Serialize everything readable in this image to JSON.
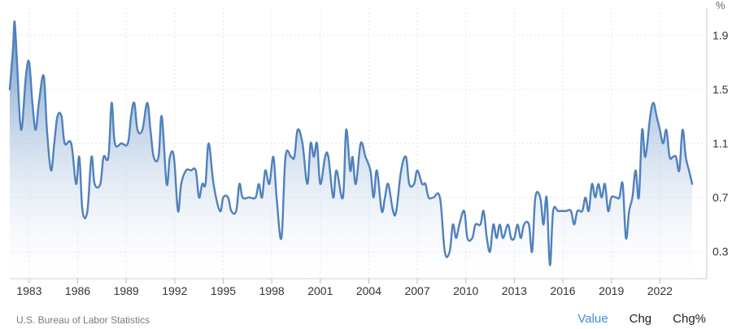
{
  "chart_data": {
    "type": "area",
    "title": "",
    "unit_label": "%",
    "xlabel": "",
    "ylabel": "",
    "xlim": [
      1981.8,
      2024.9
    ],
    "ylim": [
      0.1,
      2.1
    ],
    "grid": true,
    "line_color": "#4f81bd",
    "fill_color_top": "#4f81bd",
    "fill_color_bottom": "#ffffff",
    "x_ticks": [
      1983,
      1986,
      1989,
      1992,
      1995,
      1998,
      2001,
      2004,
      2007,
      2010,
      2013,
      2016,
      2019,
      2022
    ],
    "y_ticks": [
      0.3,
      0.7,
      1.1,
      1.5,
      1.9
    ],
    "x_tick_labels": [
      "1983",
      "1986",
      "1989",
      "1992",
      "1995",
      "1998",
      "2001",
      "2004",
      "2007",
      "2010",
      "2013",
      "2016",
      "2019",
      "2022"
    ],
    "y_tick_labels": [
      "0.3",
      "0.7",
      "1.1",
      "1.5",
      "1.9"
    ],
    "points": [
      [
        1981.8,
        1.5
      ],
      [
        1982.0,
        1.8
      ],
      [
        1982.1,
        2.0
      ],
      [
        1982.25,
        1.7
      ],
      [
        1982.5,
        1.2
      ],
      [
        1982.8,
        1.6
      ],
      [
        1983.0,
        1.7
      ],
      [
        1983.2,
        1.4
      ],
      [
        1983.4,
        1.2
      ],
      [
        1983.6,
        1.4
      ],
      [
        1983.9,
        1.6
      ],
      [
        1984.1,
        1.2
      ],
      [
        1984.35,
        0.9
      ],
      [
        1984.55,
        1.1
      ],
      [
        1984.75,
        1.3
      ],
      [
        1985.0,
        1.3
      ],
      [
        1985.2,
        1.1
      ],
      [
        1985.6,
        1.1
      ],
      [
        1985.9,
        0.8
      ],
      [
        1986.1,
        1.0
      ],
      [
        1986.3,
        0.6
      ],
      [
        1986.6,
        0.6
      ],
      [
        1986.85,
        1.0
      ],
      [
        1987.05,
        0.8
      ],
      [
        1987.4,
        0.8
      ],
      [
        1987.6,
        1.0
      ],
      [
        1987.9,
        1.0
      ],
      [
        1988.1,
        1.4
      ],
      [
        1988.3,
        1.1
      ],
      [
        1988.7,
        1.1
      ],
      [
        1989.1,
        1.1
      ],
      [
        1989.3,
        1.3
      ],
      [
        1989.5,
        1.4
      ],
      [
        1989.7,
        1.2
      ],
      [
        1990.0,
        1.2
      ],
      [
        1990.3,
        1.4
      ],
      [
        1990.5,
        1.2
      ],
      [
        1990.7,
        1.0
      ],
      [
        1991.0,
        1.0
      ],
      [
        1991.2,
        1.3
      ],
      [
        1991.5,
        0.8
      ],
      [
        1991.7,
        1.0
      ],
      [
        1991.95,
        1.0
      ],
      [
        1992.2,
        0.6
      ],
      [
        1992.4,
        0.8
      ],
      [
        1992.7,
        0.9
      ],
      [
        1993.0,
        0.9
      ],
      [
        1993.3,
        0.9
      ],
      [
        1993.5,
        0.7
      ],
      [
        1993.7,
        0.8
      ],
      [
        1993.9,
        0.8
      ],
      [
        1994.1,
        1.1
      ],
      [
        1994.4,
        0.8
      ],
      [
        1994.8,
        0.6
      ],
      [
        1995.0,
        0.7
      ],
      [
        1995.3,
        0.7
      ],
      [
        1995.5,
        0.6
      ],
      [
        1995.8,
        0.6
      ],
      [
        1996.0,
        0.8
      ],
      [
        1996.2,
        0.7
      ],
      [
        1996.6,
        0.7
      ],
      [
        1997.0,
        0.7
      ],
      [
        1997.2,
        0.8
      ],
      [
        1997.4,
        0.7
      ],
      [
        1997.6,
        0.9
      ],
      [
        1997.85,
        0.8
      ],
      [
        1998.1,
        1.0
      ],
      [
        1998.3,
        0.7
      ],
      [
        1998.6,
        0.4
      ],
      [
        1998.85,
        1.0
      ],
      [
        1999.2,
        1.0
      ],
      [
        1999.4,
        1.0
      ],
      [
        1999.6,
        1.2
      ],
      [
        1999.9,
        1.1
      ],
      [
        2000.2,
        0.8
      ],
      [
        2000.4,
        1.1
      ],
      [
        2000.6,
        1.0
      ],
      [
        2000.8,
        1.1
      ],
      [
        2001.0,
        0.8
      ],
      [
        2001.3,
        1.0
      ],
      [
        2001.5,
        1.0
      ],
      [
        2001.8,
        0.7
      ],
      [
        2002.0,
        0.9
      ],
      [
        2002.4,
        0.7
      ],
      [
        2002.6,
        1.2
      ],
      [
        2002.85,
        0.9
      ],
      [
        2003.0,
        1.0
      ],
      [
        2003.2,
        0.8
      ],
      [
        2003.5,
        1.1
      ],
      [
        2003.8,
        1.0
      ],
      [
        2004.1,
        0.9
      ],
      [
        2004.3,
        0.7
      ],
      [
        2004.5,
        0.9
      ],
      [
        2004.8,
        0.6
      ],
      [
        2005.0,
        0.7
      ],
      [
        2005.2,
        0.8
      ],
      [
        2005.5,
        0.6
      ],
      [
        2005.7,
        0.6
      ],
      [
        2006.0,
        0.9
      ],
      [
        2006.3,
        1.0
      ],
      [
        2006.5,
        0.8
      ],
      [
        2006.8,
        0.8
      ],
      [
        2007.0,
        0.9
      ],
      [
        2007.3,
        0.8
      ],
      [
        2007.5,
        0.8
      ],
      [
        2007.7,
        0.7
      ],
      [
        2008.0,
        0.7
      ],
      [
        2008.4,
        0.7
      ],
      [
        2008.7,
        0.3
      ],
      [
        2009.0,
        0.3
      ],
      [
        2009.2,
        0.5
      ],
      [
        2009.4,
        0.4
      ],
      [
        2009.6,
        0.5
      ],
      [
        2009.9,
        0.6
      ],
      [
        2010.1,
        0.4
      ],
      [
        2010.4,
        0.4
      ],
      [
        2010.6,
        0.5
      ],
      [
        2010.9,
        0.5
      ],
      [
        2011.1,
        0.6
      ],
      [
        2011.3,
        0.4
      ],
      [
        2011.5,
        0.3
      ],
      [
        2011.7,
        0.5
      ],
      [
        2011.9,
        0.4
      ],
      [
        2012.1,
        0.5
      ],
      [
        2012.3,
        0.4
      ],
      [
        2012.6,
        0.5
      ],
      [
        2012.8,
        0.4
      ],
      [
        2013.0,
        0.4
      ],
      [
        2013.2,
        0.5
      ],
      [
        2013.4,
        0.4
      ],
      [
        2013.6,
        0.5
      ],
      [
        2013.9,
        0.5
      ],
      [
        2014.1,
        0.3
      ],
      [
        2014.3,
        0.7
      ],
      [
        2014.6,
        0.7
      ],
      [
        2014.8,
        0.5
      ],
      [
        2015.0,
        0.7
      ],
      [
        2015.2,
        0.2
      ],
      [
        2015.4,
        0.6
      ],
      [
        2015.7,
        0.6
      ],
      [
        2016.0,
        0.6
      ],
      [
        2016.2,
        0.6
      ],
      [
        2016.5,
        0.6
      ],
      [
        2016.7,
        0.5
      ],
      [
        2016.9,
        0.6
      ],
      [
        2017.2,
        0.6
      ],
      [
        2017.4,
        0.7
      ],
      [
        2017.6,
        0.6
      ],
      [
        2017.8,
        0.8
      ],
      [
        2018.0,
        0.7
      ],
      [
        2018.2,
        0.8
      ],
      [
        2018.4,
        0.7
      ],
      [
        2018.6,
        0.8
      ],
      [
        2018.8,
        0.6
      ],
      [
        2019.0,
        0.7
      ],
      [
        2019.3,
        0.7
      ],
      [
        2019.5,
        0.7
      ],
      [
        2019.7,
        0.8
      ],
      [
        2019.9,
        0.4
      ],
      [
        2020.1,
        0.6
      ],
      [
        2020.3,
        0.7
      ],
      [
        2020.5,
        0.9
      ],
      [
        2020.7,
        0.7
      ],
      [
        2020.9,
        1.2
      ],
      [
        2021.1,
        1.0
      ],
      [
        2021.4,
        1.3
      ],
      [
        2021.6,
        1.4
      ],
      [
        2021.8,
        1.3
      ],
      [
        2022.0,
        1.2
      ],
      [
        2022.2,
        1.1
      ],
      [
        2022.4,
        1.2
      ],
      [
        2022.6,
        1.0
      ],
      [
        2022.8,
        1.0
      ],
      [
        2023.0,
        1.0
      ],
      [
        2023.2,
        0.9
      ],
      [
        2023.4,
        1.2
      ],
      [
        2023.6,
        1.0
      ],
      [
        2023.8,
        0.9
      ],
      [
        2024.0,
        0.8
      ]
    ]
  },
  "footer": {
    "source": "U.S. Bureau of Labor Statistics",
    "tabs": [
      {
        "label": "Value",
        "active": true
      },
      {
        "label": "Chg",
        "active": false
      },
      {
        "label": "Chg%",
        "active": false
      }
    ]
  }
}
